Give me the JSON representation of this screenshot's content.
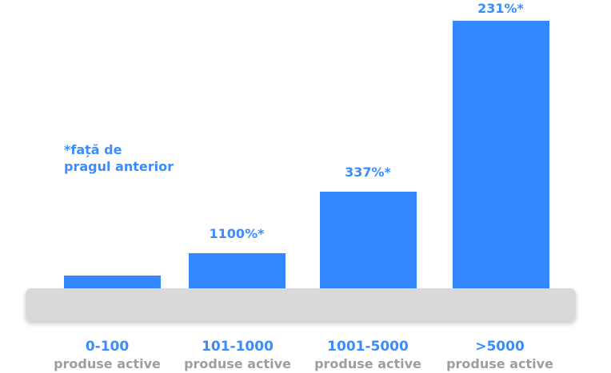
{
  "chart_data": {
    "type": "bar",
    "categories": [
      "0-100",
      "101-1000",
      "1001-5000",
      ">5000"
    ],
    "category_sublabel": "produse active",
    "values": [
      0,
      1100,
      337,
      231
    ],
    "value_labels": [
      "",
      "1100%*",
      "337%*",
      "231%*"
    ],
    "note": [
      "*față de",
      "pragul anterior"
    ],
    "bar_color": "#3388ff",
    "axis_color": "#d9d9d9",
    "category_color": "#3b8cff",
    "sublabel_color": "#9e9e9e"
  }
}
